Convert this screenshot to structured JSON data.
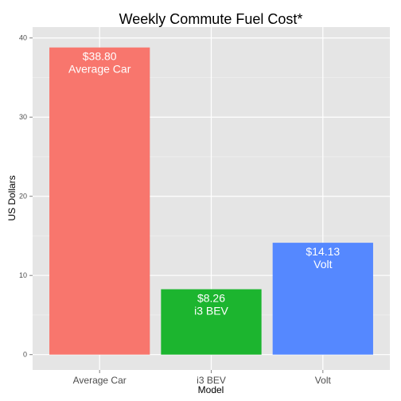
{
  "chart_data": {
    "type": "bar",
    "title": "Weekly Commute Fuel Cost*",
    "xlabel": "Model",
    "ylabel": "US Dollars",
    "categories": [
      "Average Car",
      "i3 BEV",
      "Volt"
    ],
    "values": [
      38.8,
      8.26,
      14.13
    ],
    "bar_labels": [
      {
        "amount": "$38.80",
        "name": "Average Car"
      },
      {
        "amount": "$8.26",
        "name": "i3 BEV"
      },
      {
        "amount": "$14.13",
        "name": "Volt"
      }
    ],
    "colors": [
      "#F8766D",
      "#1CB52F",
      "#5588FF"
    ],
    "y_ticks": [
      0,
      10,
      20,
      30,
      40
    ],
    "ylim": [
      -1.94,
      41.38
    ],
    "grid": true,
    "background": "#E5E5E5"
  }
}
